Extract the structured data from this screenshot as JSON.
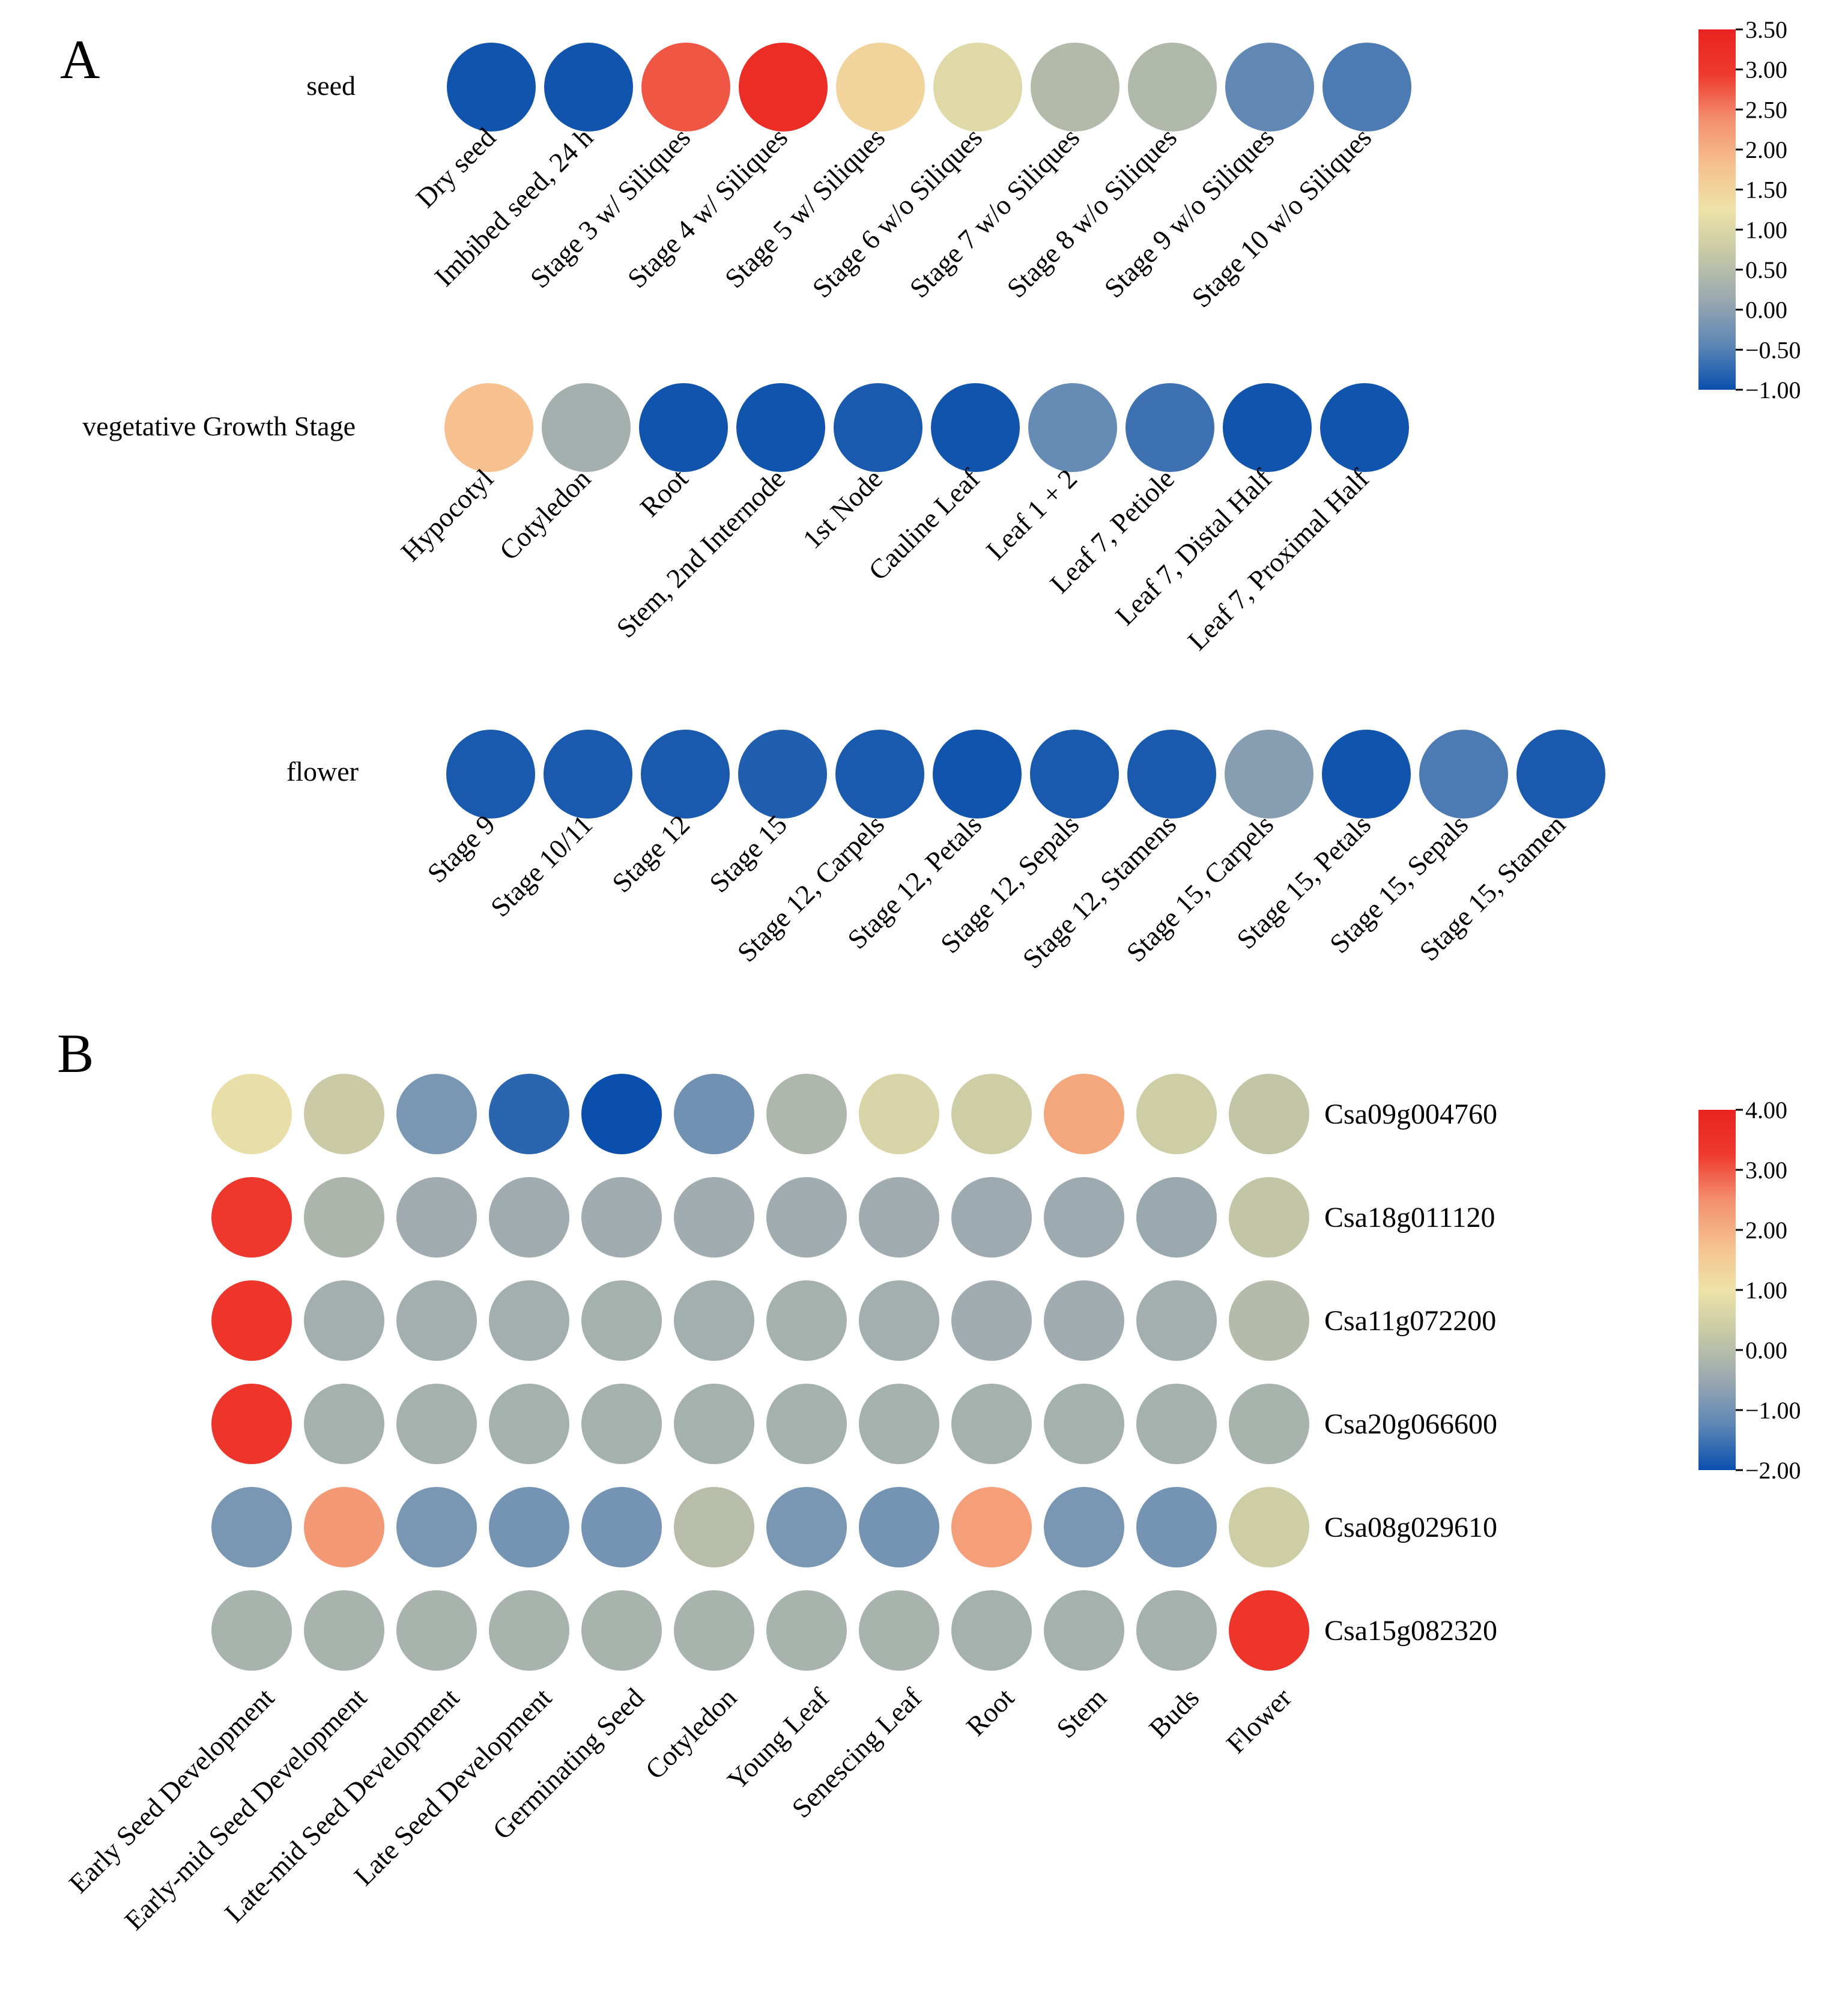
{
  "panel_a": {
    "letter": "A",
    "colorbar": {
      "ticks": [
        "3.50",
        "3.00",
        "2.50",
        "2.00",
        "1.50",
        "1.00",
        "0.50",
        "0.00",
        "−0.50",
        "−1.00"
      ],
      "min": -1.0,
      "max": 3.5,
      "colors": [
        "#0a4fad",
        "#5d86b5",
        "#9aa8b0",
        "#c5c8a6",
        "#ede2a8",
        "#f6c08e",
        "#f38f6f",
        "#ee3a2f",
        "#e8231f"
      ]
    }
  },
  "panel_b": {
    "letter": "B",
    "colorbar": {
      "ticks": [
        "4.00",
        "3.00",
        "2.00",
        "1.00",
        "0.00",
        "−1.00",
        "−2.00"
      ],
      "min": -2.0,
      "max": 4.0,
      "colors": [
        "#0a4fad",
        "#5d86b5",
        "#9aa8b0",
        "#c5c8a6",
        "#ede2a8",
        "#f6c08e",
        "#f38f6f",
        "#ee3a2f",
        "#e8231f"
      ]
    }
  },
  "chart_data": [
    {
      "type": "heatmap",
      "panel": "A",
      "title": "seed",
      "categories": [
        "Dry seed",
        "Imbibed seed, 24 h",
        "Stage 3 w/ Siliques",
        "Stage 4 w/ Siliques",
        "Stage 5 w/ Siliques",
        "Stage 6 w/o Siliques",
        "Stage 7 w/o Siliques",
        "Stage 8 w/o Siliques",
        "Stage 9 w/o Siliques",
        "Stage 10 w/o Siliques"
      ],
      "values": [
        -0.95,
        -0.95,
        2.75,
        3.25,
        1.5,
        1.05,
        0.45,
        0.4,
        -0.4,
        -0.55
      ],
      "scale": [
        -1.0,
        3.5
      ]
    },
    {
      "type": "heatmap",
      "panel": "A",
      "title": "vegetative Growth Stage",
      "categories": [
        "Hypocotyl",
        "Cotyledon",
        "Root",
        "Stem, 2nd Internode",
        "1st Node",
        "Cauline Leaf",
        "Leaf 1 + 2",
        "Leaf 7, Petiole",
        "Leaf 7, Distal Half",
        "Leaf 7, Proximal Half"
      ],
      "values": [
        1.8,
        0.25,
        -0.95,
        -0.95,
        -0.9,
        -0.95,
        -0.35,
        -0.65,
        -0.95,
        -0.95
      ],
      "scale": [
        -1.0,
        3.5
      ]
    },
    {
      "type": "heatmap",
      "panel": "A",
      "title": "flower",
      "categories": [
        "Stage 9",
        "Stage 10/11",
        "Stage 12",
        "Stage 15",
        "Stage 12, Carpels",
        "Stage 12, Petals",
        "Stage 12, Sepals",
        "Stage 12, Stamens",
        "Stage 15, Carpels",
        "Stage 15, Petals",
        "Stage 15, Sepals",
        "Stage 15, Stamen"
      ],
      "values": [
        -0.9,
        -0.9,
        -0.9,
        -0.85,
        -0.9,
        -0.95,
        -0.9,
        -0.9,
        -0.05,
        -0.95,
        -0.55,
        -0.9
      ],
      "scale": [
        -1.0,
        3.5
      ]
    },
    {
      "type": "heatmap",
      "panel": "B",
      "title": "",
      "rows": [
        "Csa09g004760",
        "Csa18g011120",
        "Csa11g072200",
        "Csa20g066600",
        "Csa08g029610",
        "Csa15g082320"
      ],
      "columns": [
        "Early Seed Development",
        "Early-mid Seed Development",
        "Late-mid Seed Development",
        "Late Seed Development",
        "Germinating Seed",
        "Cotyledon",
        "Young Leaf",
        "Senescing Leaf",
        "Root",
        "Stem",
        "Buds",
        "Flower"
      ],
      "values": [
        [
          0.9,
          0.35,
          -0.9,
          -1.7,
          -2.0,
          -1.0,
          -0.15,
          0.6,
          0.4,
          2.15,
          0.4,
          0.2
        ],
        [
          3.3,
          -0.2,
          -0.4,
          -0.4,
          -0.4,
          -0.4,
          -0.4,
          -0.4,
          -0.45,
          -0.45,
          -0.5,
          0.2
        ],
        [
          3.4,
          -0.35,
          -0.35,
          -0.35,
          -0.3,
          -0.35,
          -0.3,
          -0.35,
          -0.4,
          -0.4,
          -0.35,
          -0.05
        ],
        [
          3.4,
          -0.3,
          -0.3,
          -0.3,
          -0.3,
          -0.3,
          -0.3,
          -0.3,
          -0.3,
          -0.3,
          -0.3,
          -0.25
        ],
        [
          -0.9,
          2.35,
          -0.9,
          -0.95,
          -0.95,
          0.0,
          -0.9,
          -0.95,
          2.25,
          -0.9,
          -0.95,
          0.4
        ],
        [
          -0.25,
          -0.25,
          -0.25,
          -0.25,
          -0.25,
          -0.25,
          -0.25,
          -0.25,
          -0.3,
          -0.3,
          -0.3,
          3.4
        ]
      ],
      "scale": [
        -2.0,
        4.0
      ]
    }
  ]
}
